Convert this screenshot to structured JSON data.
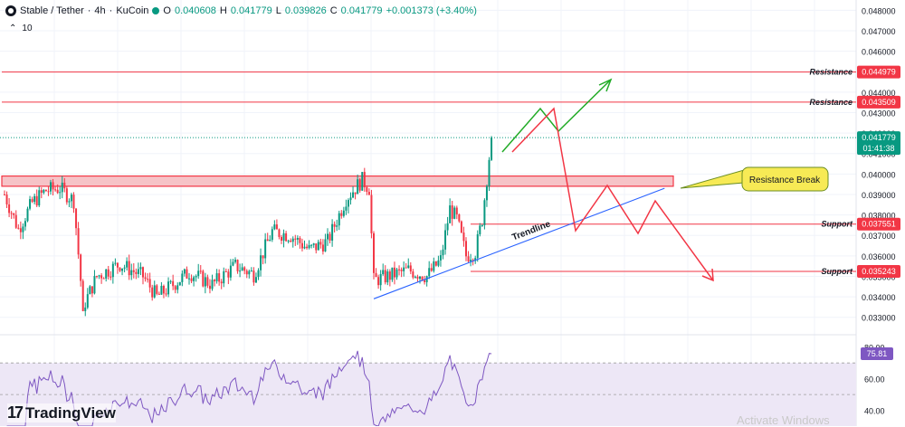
{
  "header": {
    "symbol": "Stable / Tether",
    "interval": "4h",
    "exchange": "KuCoin",
    "o_label": "O",
    "o": "0.040608",
    "h_label": "H",
    "h": "0.041779",
    "l_label": "L",
    "l": "0.039826",
    "c_label": "C",
    "c": "0.041779",
    "change": "+0.001373 (+3.40%)",
    "sep1": "/",
    "sep2": "·",
    "sep3": "·",
    "indicator_value": "10",
    "up_color": "#089981"
  },
  "brand": {
    "name": "TradingView",
    "logo_text": "17"
  },
  "watermark": "Activate Windows",
  "chart_data": {
    "type": "candlestick",
    "ylim": [
      0.0325,
      0.0485
    ],
    "y_ticks": [
      "0.048000",
      "0.047000",
      "0.046000",
      "0.045000",
      "0.044000",
      "0.043000",
      "0.042000",
      "0.041000",
      "0.040000",
      "0.039000",
      "0.038000",
      "0.037000",
      "0.036000",
      "0.035000",
      "0.034000",
      "0.033000"
    ],
    "key_points": [
      {
        "bar": 0,
        "price": 0.039
      },
      {
        "bar": 6,
        "price": 0.0373
      },
      {
        "bar": 12,
        "price": 0.0386
      },
      {
        "bar": 18,
        "price": 0.0392
      },
      {
        "bar": 24,
        "price": 0.0393
      },
      {
        "bar": 30,
        "price": 0.0387
      },
      {
        "bar": 34,
        "price": 0.0335
      },
      {
        "bar": 40,
        "price": 0.035
      },
      {
        "bar": 50,
        "price": 0.0356
      },
      {
        "bar": 60,
        "price": 0.035
      },
      {
        "bar": 66,
        "price": 0.034
      },
      {
        "bar": 72,
        "price": 0.0345
      },
      {
        "bar": 80,
        "price": 0.0352
      },
      {
        "bar": 90,
        "price": 0.0346
      },
      {
        "bar": 100,
        "price": 0.0355
      },
      {
        "bar": 108,
        "price": 0.0351
      },
      {
        "bar": 116,
        "price": 0.0372
      },
      {
        "bar": 124,
        "price": 0.037
      },
      {
        "bar": 132,
        "price": 0.0363
      },
      {
        "bar": 140,
        "price": 0.0367
      },
      {
        "bar": 148,
        "price": 0.0388
      },
      {
        "bar": 155,
        "price": 0.0397
      },
      {
        "bar": 158,
        "price": 0.0393
      },
      {
        "bar": 160,
        "price": 0.0348
      },
      {
        "bar": 166,
        "price": 0.035
      },
      {
        "bar": 175,
        "price": 0.0353
      },
      {
        "bar": 183,
        "price": 0.035
      },
      {
        "bar": 189,
        "price": 0.0358
      },
      {
        "bar": 193,
        "price": 0.0383
      },
      {
        "bar": 196,
        "price": 0.0378
      },
      {
        "bar": 200,
        "price": 0.036
      },
      {
        "bar": 204,
        "price": 0.0362
      },
      {
        "bar": 207,
        "price": 0.0378
      },
      {
        "bar": 209,
        "price": 0.0398
      },
      {
        "bar": 211,
        "price": 0.0418
      }
    ],
    "bar_count": 212,
    "current_price": {
      "value": "0.041779",
      "countdown": "01:41:38",
      "price": 0.041779
    },
    "levels": [
      {
        "label": "Resistance",
        "value": "0.044979",
        "price": 0.044979
      },
      {
        "label": "Resistance",
        "value": "0.043509",
        "price": 0.043509
      },
      {
        "label": "Support",
        "value": "0.037551",
        "price": 0.037551
      },
      {
        "label": "Support",
        "value": "0.035243",
        "price": 0.035243
      }
    ],
    "zone": {
      "from": 0.0394,
      "to": 0.0399
    },
    "trendline": {
      "label": "Trendline",
      "start": {
        "bar": 160,
        "price": 0.0339
      },
      "end": {
        "bar": 286,
        "price": 0.0393
      }
    },
    "callout": {
      "text": "Resistance Break"
    },
    "rsi": {
      "value": "75.81",
      "ylim": [
        30,
        85
      ],
      "ticks": [
        "80.00",
        "60.00",
        "40.00"
      ],
      "band": [
        30,
        70
      ]
    }
  },
  "colors": {
    "up": "#089981",
    "down": "#f23645",
    "rsi": "#7e57c2",
    "band": "#ede7f6",
    "level": "#f23645",
    "trend": "#2962ff",
    "path_up": "#22ab27",
    "path_down": "#f23645",
    "callout_fill": "#f7ea55",
    "zone_fill": "#f6c3c7"
  }
}
